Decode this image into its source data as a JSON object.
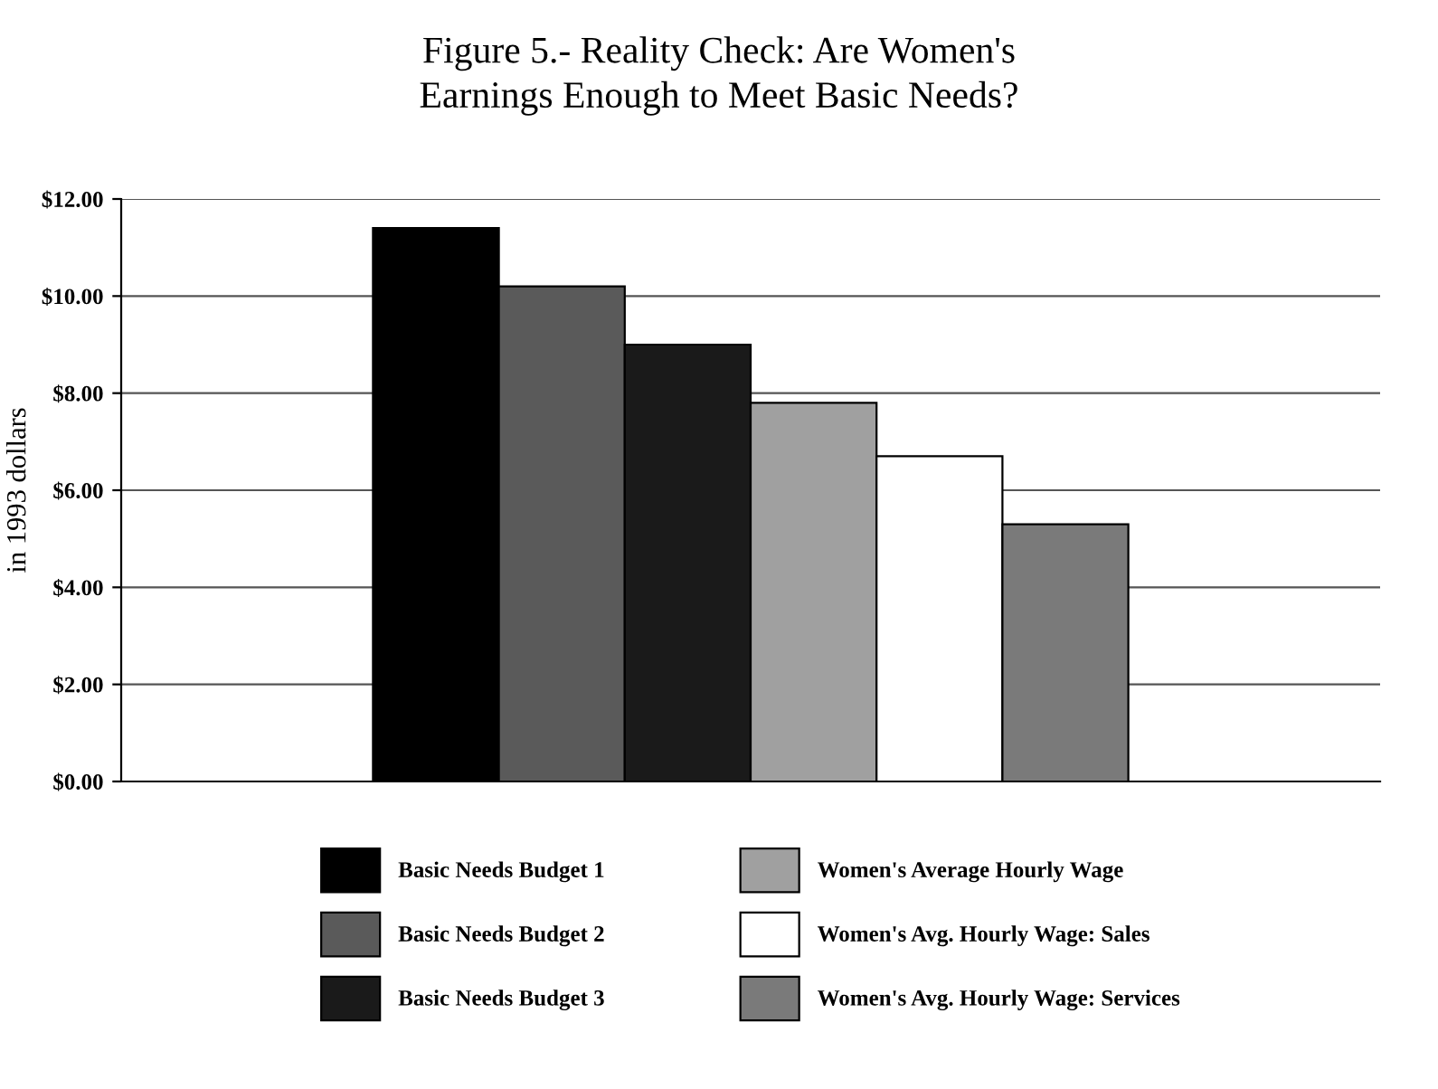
{
  "chart_data": {
    "type": "bar",
    "title": "Figure 5.- Reality Check: Are Women's\nEarnings Enough to Meet Basic Needs?",
    "ylabel": "in 1993 dollars",
    "categories": [
      null
    ],
    "series": [
      {
        "name": "Basic Needs Budget 1",
        "color": "#000000",
        "values": [
          11.4
        ]
      },
      {
        "name": "Basic Needs Budget 2",
        "color": "#5a5a5a",
        "values": [
          10.2
        ]
      },
      {
        "name": "Basic Needs Budget 3",
        "color": "#1a1a1a",
        "values": [
          9.0
        ]
      },
      {
        "name": "Women's Average Hourly Wage",
        "color": "#a0a0a0",
        "values": [
          7.8
        ]
      },
      {
        "name": "Women's Avg. Hourly Wage: Sales",
        "color": "#ffffff",
        "values": [
          6.7
        ]
      },
      {
        "name": "Women's Avg. Hourly Wage: Services",
        "color": "#7a7a7a",
        "values": [
          5.3
        ]
      }
    ],
    "ylim": [
      0,
      12
    ],
    "yticks": [
      {
        "value": 0,
        "label": "$0.00"
      },
      {
        "value": 2,
        "label": "$2.00"
      },
      {
        "value": 4,
        "label": "$4.00"
      },
      {
        "value": 6,
        "label": "$6.00"
      },
      {
        "value": 8,
        "label": "$8.00"
      },
      {
        "value": 10,
        "label": "$10.00"
      },
      {
        "value": 12,
        "label": "$12.00"
      }
    ],
    "grid": "y",
    "legend": "bottom"
  }
}
